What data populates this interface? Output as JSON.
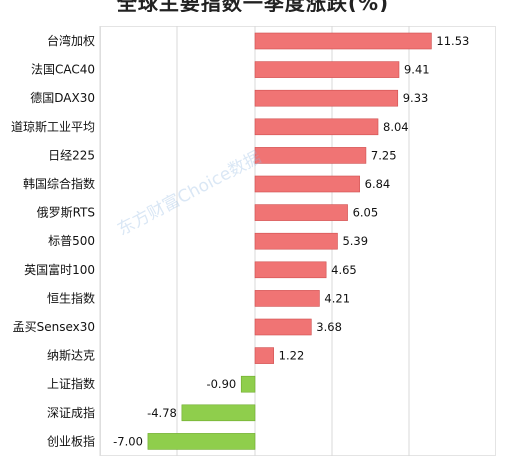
{
  "chart_data": {
    "type": "bar",
    "orientation": "horizontal",
    "title": "全球主要指数一季度涨跌(%)",
    "categories": [
      "台湾加权",
      "法国CAC40",
      "德国DAX30",
      "道琼斯工业平均",
      "日经225",
      "韩国综合指数",
      "俄罗斯RTS",
      "标普500",
      "英国富时100",
      "恒生指数",
      "孟买Sensex30",
      "纳斯达克",
      "上证指数",
      "深证成指",
      "创业板指"
    ],
    "values": [
      11.53,
      9.41,
      9.33,
      8.04,
      7.25,
      6.84,
      6.05,
      5.39,
      4.65,
      4.21,
      3.68,
      1.22,
      -0.9,
      -4.78,
      -7.0
    ],
    "data_labels": [
      "11.53",
      "9.41",
      "9.33",
      "8.04",
      "7.25",
      "6.84",
      "6.05",
      "5.39",
      "4.65",
      "4.21",
      "3.68",
      "1.22",
      "-0.90",
      "-4.78",
      "-7.00"
    ],
    "xlim": [
      -8,
      14
    ],
    "grid": true,
    "legend": "none",
    "colors": {
      "positive": "#f07474",
      "positive_stroke": "#cf4f4f",
      "negative": "#8fce4c",
      "negative_stroke": "#6fab2e",
      "gridline": "#d9d9d9"
    }
  },
  "watermark_text": "东方财富Choice数据"
}
